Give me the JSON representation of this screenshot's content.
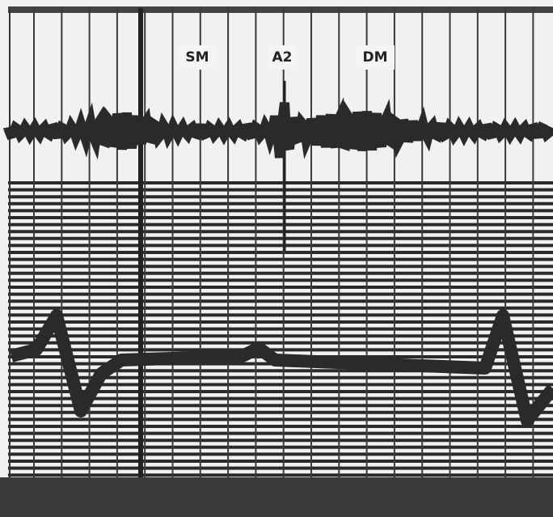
{
  "annotations": [
    {
      "label": "SM"
    },
    {
      "label": "A2"
    },
    {
      "label": "DM"
    }
  ]
}
